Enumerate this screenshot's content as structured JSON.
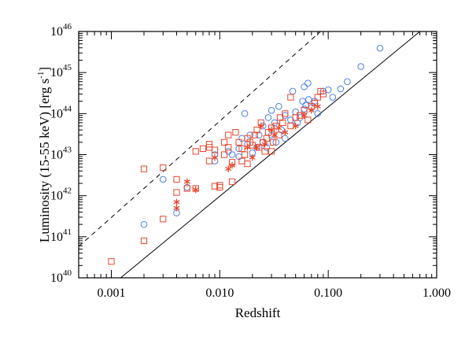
{
  "chart_data": {
    "type": "scatter",
    "xlabel": "Redshift",
    "ylabel": "Luminosity (15-55 keV) [erg s",
    "ylabel_sup": "-1",
    "ylabel_close": "]",
    "xscale": "log",
    "yscale": "log",
    "xlim": [
      0.0005,
      1.0
    ],
    "ylim": [
      1e+40,
      1e+46
    ],
    "x_ticks": [
      {
        "value": 0.001,
        "label": "0.001"
      },
      {
        "value": 0.01,
        "label": "0.010"
      },
      {
        "value": 0.1,
        "label": "0.100"
      },
      {
        "value": 1.0,
        "label": "1.000"
      }
    ],
    "y_ticks": [
      {
        "value": 1e+40,
        "base": "10",
        "exp": "40"
      },
      {
        "value": 1e+41,
        "base": "10",
        "exp": "41"
      },
      {
        "value": 1e+42,
        "base": "10",
        "exp": "42"
      },
      {
        "value": 1e+43,
        "base": "10",
        "exp": "43"
      },
      {
        "value": 1e+44,
        "base": "10",
        "exp": "44"
      },
      {
        "value": 1e+45,
        "base": "10",
        "exp": "45"
      },
      {
        "value": 1e+46,
        "base": "10",
        "exp": "46"
      }
    ],
    "lines": [
      {
        "style": "solid",
        "color": "#000000",
        "points": [
          [
            0.001,
            6.5e+39
          ],
          [
            0.7,
            1e+46
          ]
        ]
      },
      {
        "style": "dashed",
        "color": "#000000",
        "points": [
          [
            0.0005,
            5.8e+40
          ],
          [
            0.085,
            1e+46
          ]
        ]
      }
    ],
    "series": [
      {
        "marker": "circle",
        "color": "#4a7fe0",
        "points": [
          [
            0.002,
            2e+41
          ],
          [
            0.004,
            3.8e+41
          ],
          [
            0.003,
            2.5e+42
          ],
          [
            0.005,
            1.6e+42
          ],
          [
            0.009,
            1e+43
          ],
          [
            0.009,
            7e+42
          ],
          [
            0.012,
            1.2e+43
          ],
          [
            0.013,
            1e+43
          ],
          [
            0.015,
            1.4e+43
          ],
          [
            0.015,
            9e+42
          ],
          [
            0.016,
            2.5e+43
          ],
          [
            0.017,
            1e+44
          ],
          [
            0.018,
            1.8e+43
          ],
          [
            0.019,
            3e+43
          ],
          [
            0.02,
            1.1e+43
          ],
          [
            0.022,
            1.5e+43
          ],
          [
            0.023,
            3e+43
          ],
          [
            0.025,
            2e+43
          ],
          [
            0.025,
            5e+43
          ],
          [
            0.027,
            1.5e+43
          ],
          [
            0.028,
            8e+43
          ],
          [
            0.03,
            3e+43
          ],
          [
            0.03,
            1.2e+44
          ],
          [
            0.032,
            6e+43
          ],
          [
            0.033,
            2e+43
          ],
          [
            0.035,
            1.5e+44
          ],
          [
            0.037,
            4e+43
          ],
          [
            0.04,
            9e+43
          ],
          [
            0.04,
            2.5e+43
          ],
          [
            0.045,
            7e+43
          ],
          [
            0.047,
            3.5e+44
          ],
          [
            0.05,
            1.1e+44
          ],
          [
            0.052,
            6e+43
          ],
          [
            0.055,
            8e+43
          ],
          [
            0.06,
            4.5e+44
          ],
          [
            0.06,
            1.3e+44
          ],
          [
            0.065,
            5.5e+44
          ],
          [
            0.07,
            1.4e+44
          ],
          [
            0.075,
            2e+44
          ],
          [
            0.08,
            1e+44
          ],
          [
            0.09,
            3.5e+44
          ],
          [
            0.1,
            3.8e+44
          ],
          [
            0.11,
            2.5e+44
          ],
          [
            0.13,
            4e+44
          ],
          [
            0.15,
            6e+44
          ],
          [
            0.2,
            1.4e+45
          ],
          [
            0.3,
            3.9e+45
          ],
          [
            0.058,
            2e+44
          ],
          [
            0.062,
            1.6e+44
          ],
          [
            0.066,
            2.2e+44
          ]
        ]
      },
      {
        "marker": "square",
        "color": "#e8452c",
        "points": [
          [
            0.001,
            2.5e+40
          ],
          [
            0.002,
            8e+40
          ],
          [
            0.002,
            4.5e+42
          ],
          [
            0.003,
            4.8e+42
          ],
          [
            0.003,
            2.7e+41
          ],
          [
            0.004,
            2.5e+42
          ],
          [
            0.004,
            1.2e+42
          ],
          [
            0.005,
            1.5e+42
          ],
          [
            0.006,
            1.5e+42
          ],
          [
            0.006,
            1.2e+43
          ],
          [
            0.007,
            1.4e+43
          ],
          [
            0.008,
            1.8e+43
          ],
          [
            0.008,
            1.5e+43
          ],
          [
            0.008,
            7e+42
          ],
          [
            0.009,
            1.7e+42
          ],
          [
            0.009,
            1.3e+43
          ],
          [
            0.01,
            1.6e+42
          ],
          [
            0.01,
            1.8e+42
          ],
          [
            0.011,
            2e+43
          ],
          [
            0.011,
            1e+43
          ],
          [
            0.012,
            3e+43
          ],
          [
            0.012,
            1.5e+43
          ],
          [
            0.013,
            2.2e+42
          ],
          [
            0.013,
            6.5e+42
          ],
          [
            0.014,
            3.5e+43
          ],
          [
            0.015,
            2e+43
          ],
          [
            0.016,
            7e+42
          ],
          [
            0.016,
            1.4e+43
          ],
          [
            0.017,
            1e+43
          ],
          [
            0.018,
            6e+42
          ],
          [
            0.018,
            2.5e+43
          ],
          [
            0.019,
            2e+43
          ],
          [
            0.02,
            1.7e+43
          ],
          [
            0.021,
            3e+43
          ],
          [
            0.022,
            4e+43
          ],
          [
            0.023,
            1.5e+43
          ],
          [
            0.024,
            6e+43
          ],
          [
            0.025,
            2e+43
          ],
          [
            0.026,
            1.2e+43
          ],
          [
            0.027,
            2.5e+43
          ],
          [
            0.028,
            3.5e+43
          ],
          [
            0.03,
            4.5e+43
          ],
          [
            0.031,
            2e+43
          ],
          [
            0.033,
            5e+43
          ],
          [
            0.035,
            3e+43
          ],
          [
            0.036,
            8e+43
          ],
          [
            0.038,
            6e+43
          ],
          [
            0.04,
            1e+44
          ],
          [
            0.045,
            5e+43
          ],
          [
            0.05,
            8e+43
          ],
          [
            0.055,
            9e+43
          ],
          [
            0.06,
            1.2e+44
          ],
          [
            0.065,
            7e+43
          ],
          [
            0.07,
            1.5e+44
          ],
          [
            0.08,
            2.5e+44
          ],
          [
            0.085,
            3.5e+44
          ],
          [
            0.09,
            3e+44
          ],
          [
            0.045,
            2.5e+44
          ],
          [
            0.075,
            1.8e+44
          ],
          [
            0.03,
            1.2e+43
          ]
        ]
      },
      {
        "marker": "asterisk",
        "color": "#e8452c",
        "points": [
          [
            0.004,
            7e+41
          ],
          [
            0.004,
            5e+41
          ],
          [
            0.005,
            2.2e+42
          ],
          [
            0.006,
            1.4e+42
          ],
          [
            0.009,
            8.5e+42
          ],
          [
            0.012,
            4.5e+42
          ],
          [
            0.013,
            5.5e+42
          ],
          [
            0.018,
            1.5e+43
          ],
          [
            0.02,
            8.5e+42
          ],
          [
            0.022,
            1.5e+43
          ],
          [
            0.024,
            5e+43
          ],
          [
            0.026,
            1.8e+43
          ],
          [
            0.03,
            4e+43
          ],
          [
            0.032,
            3e+43
          ],
          [
            0.035,
            4.5e+43
          ],
          [
            0.04,
            3.5e+43
          ],
          [
            0.05,
            5e+43
          ],
          [
            0.06,
            9e+43
          ],
          [
            0.07,
            1.2e+44
          ],
          [
            0.08,
            1.5e+44
          ]
        ]
      }
    ]
  }
}
